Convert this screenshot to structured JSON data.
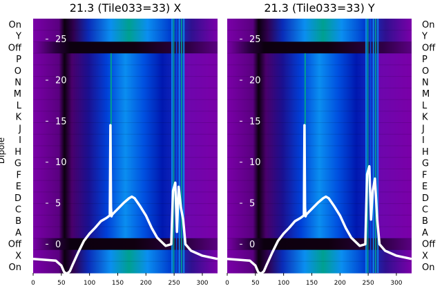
{
  "chart_data": [
    {
      "type": "heatmap",
      "title": "21.3 (Tile033=33) X",
      "ylabel": "Dipole",
      "row_labels": [
        "On",
        "Y",
        "Off",
        "P",
        "O",
        "N",
        "M",
        "L",
        "K",
        "J",
        "I",
        "H",
        "G",
        "F",
        "E",
        "D",
        "C",
        "B",
        "A",
        "Off",
        "X",
        "On"
      ],
      "x_ticks": [
        0,
        50,
        100,
        150,
        200,
        250,
        300
      ],
      "xlim": [
        0,
        327
      ],
      "overlay_y_ticks": [
        0,
        5,
        10,
        15,
        20,
        25
      ],
      "overlay_ylim": [
        -3.5,
        27.5
      ],
      "series": [
        {
          "x": [
            0,
            20,
            40,
            50,
            55,
            60,
            65,
            70,
            80,
            90,
            100,
            110,
            120,
            130,
            136,
            137,
            138,
            139,
            140,
            150,
            160,
            170,
            175,
            180,
            190,
            200,
            210,
            220,
            235,
            245,
            248,
            252,
            255,
            258,
            262,
            266,
            270,
            280,
            300,
            320,
            327
          ],
          "y": [
            -1.8,
            -1.9,
            -2.0,
            -2.6,
            -3.4,
            -3.6,
            -3.3,
            -2.5,
            -1.0,
            0.4,
            1.3,
            2.0,
            2.8,
            3.2,
            3.5,
            14.5,
            4.5,
            3.4,
            3.6,
            4.3,
            5.0,
            5.6,
            5.8,
            5.6,
            4.6,
            3.5,
            2.0,
            0.8,
            -0.2,
            0.0,
            6.5,
            7.5,
            1.5,
            7.0,
            4.5,
            3.0,
            0.0,
            -0.8,
            -1.4,
            -1.7,
            -1.8
          ]
        }
      ]
    },
    {
      "type": "heatmap",
      "title": "21.3 (Tile033=33) Y",
      "row_labels": [
        "On",
        "Y",
        "Off",
        "P",
        "O",
        "N",
        "M",
        "L",
        "K",
        "J",
        "I",
        "H",
        "G",
        "F",
        "E",
        "D",
        "C",
        "B",
        "A",
        "Off",
        "X",
        "On"
      ],
      "x_ticks": [
        0,
        50,
        100,
        150,
        200,
        250,
        300
      ],
      "xlim": [
        0,
        327
      ],
      "overlay_y_ticks": [
        0,
        5,
        10,
        15,
        20,
        25
      ],
      "overlay_ylim": [
        -3.5,
        27.5
      ],
      "series": [
        {
          "x": [
            0,
            20,
            40,
            50,
            55,
            60,
            65,
            70,
            80,
            90,
            100,
            110,
            120,
            130,
            136,
            137,
            138,
            139,
            140,
            150,
            160,
            170,
            175,
            180,
            190,
            200,
            210,
            220,
            235,
            245,
            248,
            252,
            255,
            258,
            262,
            266,
            270,
            280,
            300,
            320,
            327
          ],
          "y": [
            -1.8,
            -1.9,
            -2.0,
            -2.6,
            -3.4,
            -3.6,
            -3.3,
            -2.5,
            -1.0,
            0.4,
            1.3,
            2.0,
            2.8,
            3.2,
            3.5,
            14.5,
            4.5,
            3.4,
            3.6,
            4.3,
            5.0,
            5.6,
            5.8,
            5.6,
            4.6,
            3.5,
            2.0,
            0.8,
            -0.2,
            0.0,
            8.5,
            9.5,
            3.0,
            6.5,
            8.0,
            3.0,
            0.0,
            -0.8,
            -1.4,
            -1.7,
            -1.8
          ]
        }
      ]
    }
  ],
  "colors": {
    "purple": "#7a00a8",
    "dark": "#0c000f",
    "mid_blue": "#0044dd",
    "light_blue": "#0a8ef0",
    "teal": "#00a090",
    "line": "#ffffff"
  }
}
